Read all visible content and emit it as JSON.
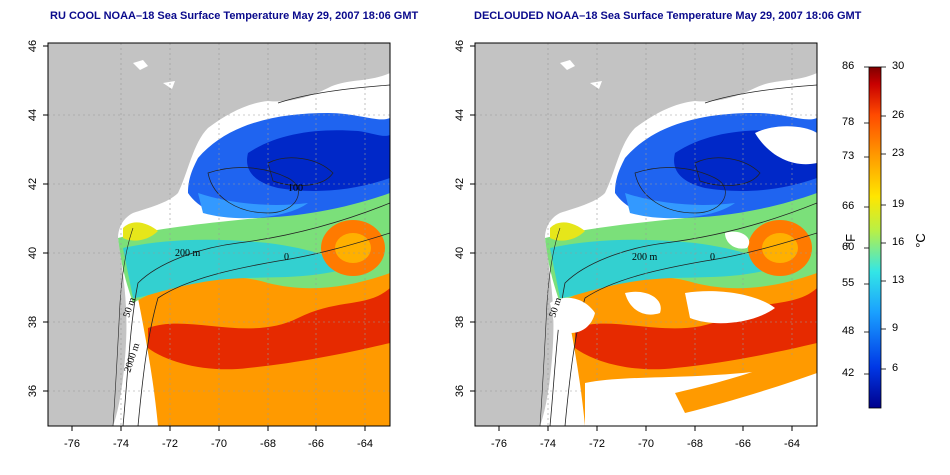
{
  "panels": [
    {
      "id": "left",
      "title": "RU COOL NOAA–18 Sea Surface Temperature May 29, 2007 18:06 GMT"
    },
    {
      "id": "right",
      "title": "DECLOUDED NOAA–18 Sea Surface Temperature May 29, 2007 18:06 GMT"
    }
  ],
  "axes": {
    "lon_ticks": [
      "-76",
      "-74",
      "-72",
      "-70",
      "-68",
      "-66",
      "-64"
    ],
    "lat_ticks": [
      "36",
      "38",
      "40",
      "42",
      "44",
      "46"
    ]
  },
  "contour_labels": [
    "200 m",
    "200 m",
    "100",
    "50 m",
    "2000 m",
    "50 m",
    "0",
    "0"
  ],
  "colorbar": {
    "unit_f": "°F",
    "unit_c": "°C",
    "f_ticks": [
      "86",
      "78",
      "73",
      "66",
      "60",
      "55",
      "48",
      "42"
    ],
    "c_ticks": [
      "30",
      "26",
      "23",
      "19",
      "16",
      "13",
      "9",
      "6"
    ],
    "colors": [
      "#00008c",
      "#0038e6",
      "#1aa0ff",
      "#33e6e6",
      "#b8f046",
      "#ffe600",
      "#ff9a00",
      "#ff4a00",
      "#c80000",
      "#800000"
    ]
  },
  "colors": {
    "land": "#c3c3c3",
    "title": "#0a0a8c",
    "no_data": "#ffffff"
  }
}
